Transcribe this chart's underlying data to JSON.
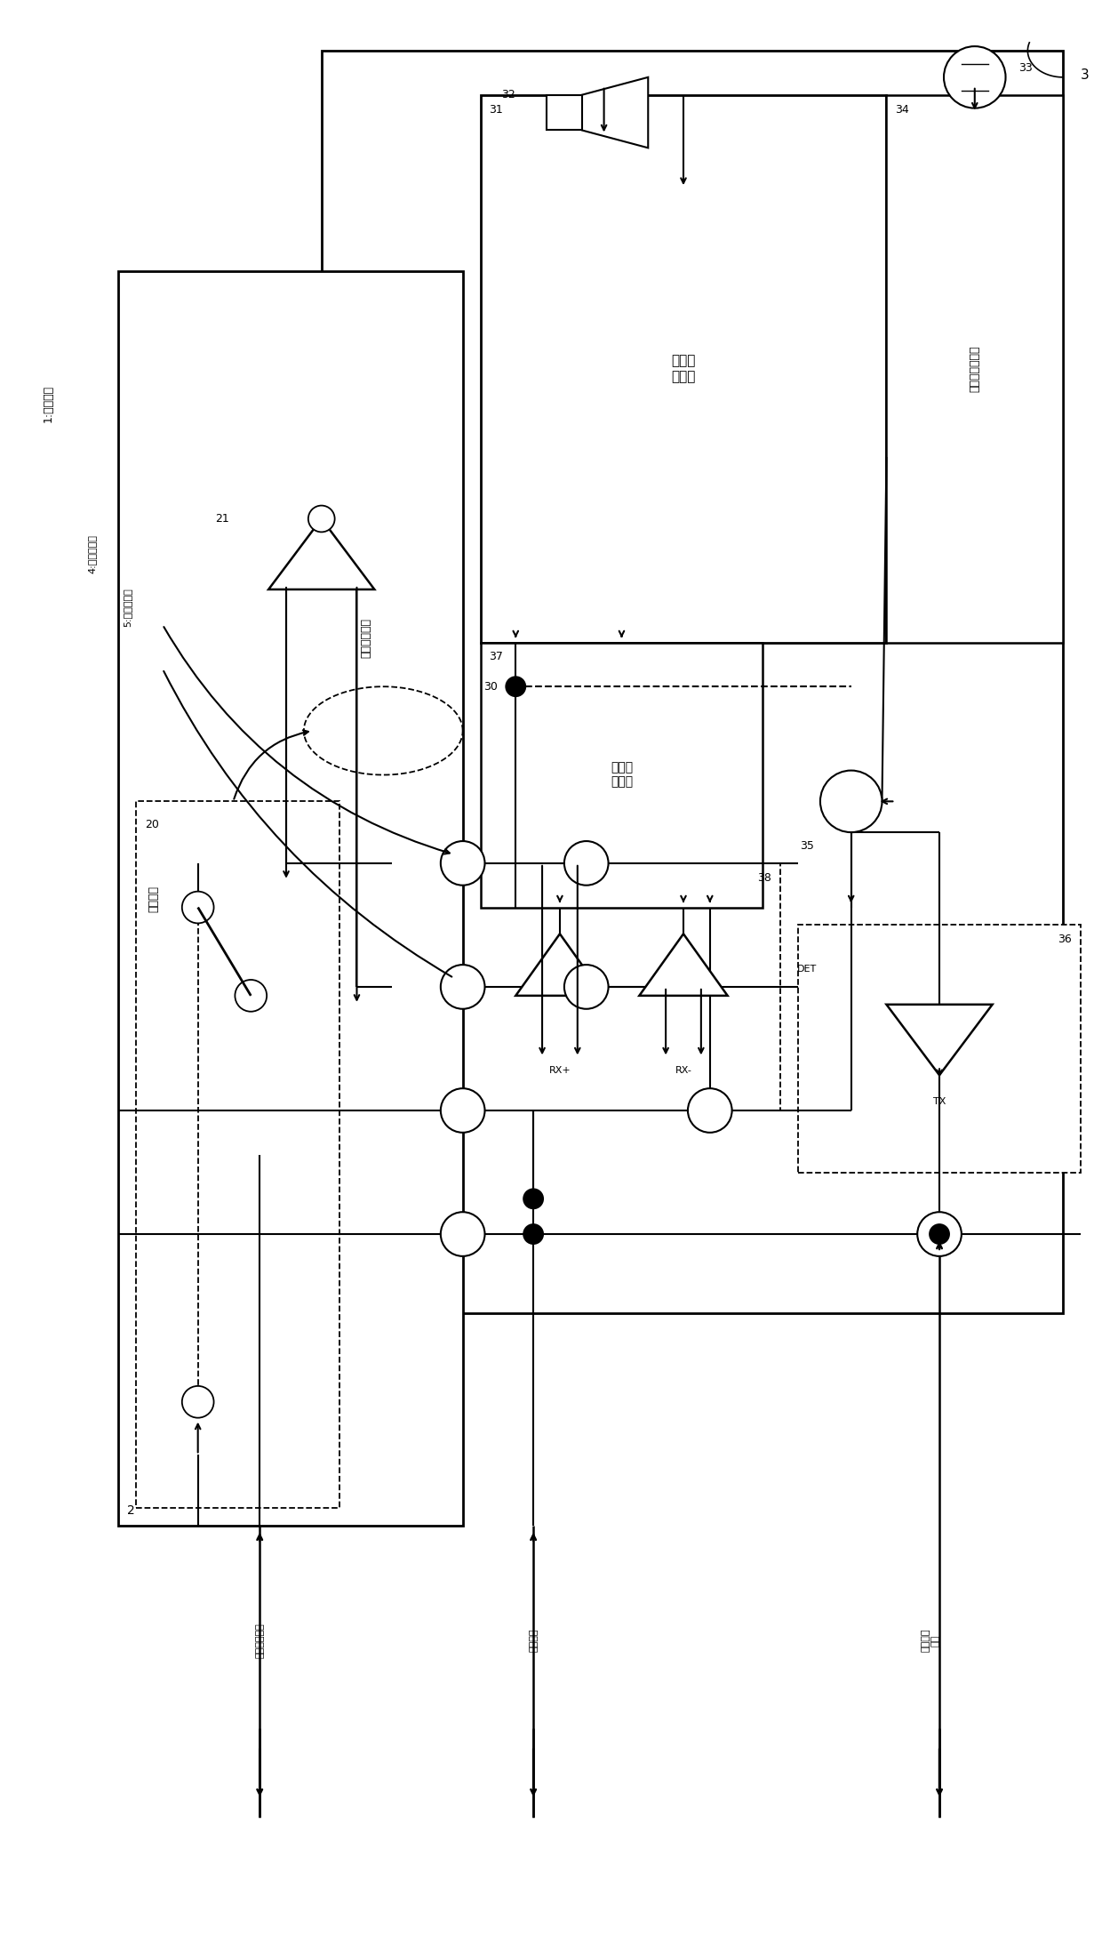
{
  "bg_color": "#ffffff",
  "fig_width": 12.4,
  "fig_height": 22.0,
  "labels": {
    "system": "1:通知系统",
    "external_unit": "外部单元",
    "voice_proc_unit": "语音处理单元",
    "unit2": "2",
    "unit3": "3",
    "n20": "20",
    "n21": "21",
    "n30": "30",
    "n31": "31",
    "n32": "32",
    "n33": "33",
    "n34": "34",
    "n35": "35",
    "n36": "36",
    "n37": "37",
    "n38": "38",
    "sig4": "4:第一信号线",
    "sig5": "5:第二信号线",
    "rx_plus": "RX+",
    "rx_minus": "RX-",
    "det": "DET",
    "tx": "TX",
    "recv_audio": "接收声音信号",
    "send_audio": "发送声音\n信号",
    "confirm_sig": "确定信号",
    "voice_proc_module": "语音处\n理模块",
    "disc_det_module": "断线检\n测模块",
    "hf_gen_module": "高频波生成模块"
  }
}
